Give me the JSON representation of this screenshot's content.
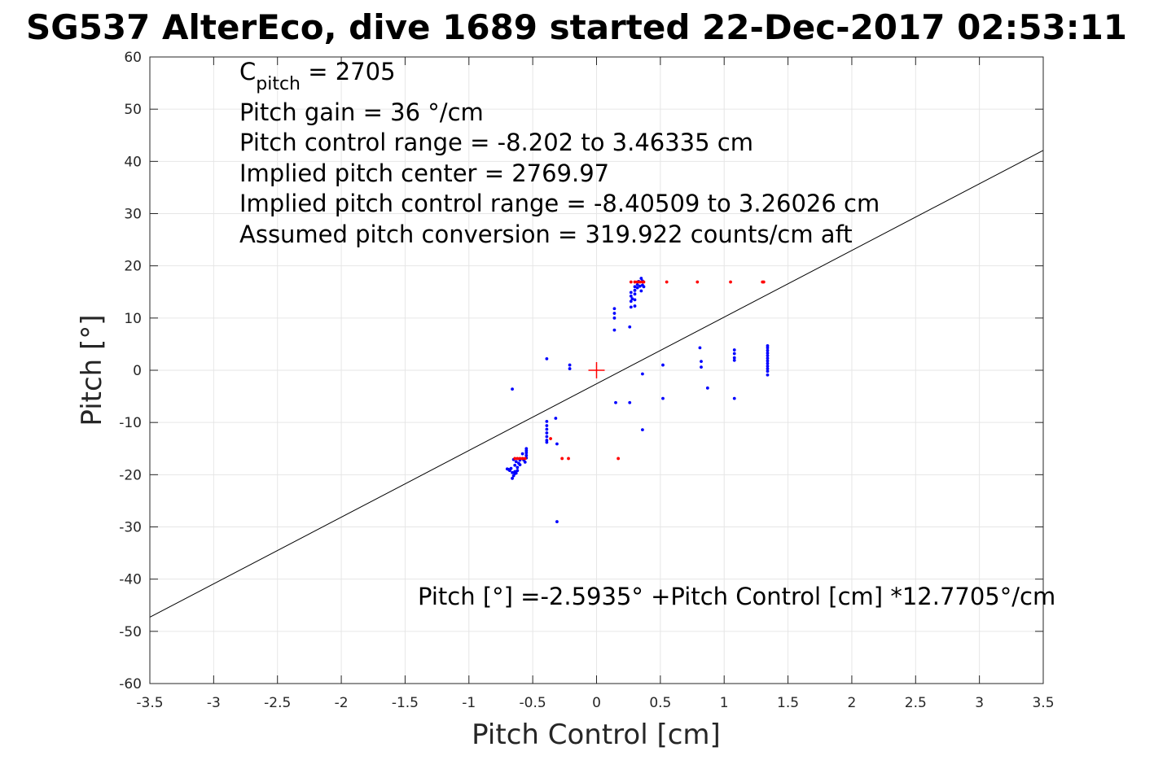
{
  "chart_data": {
    "type": "scatter",
    "title": "SG537 AlterEco, dive 1689 started 22-Dec-2017 02:53:11",
    "xlabel": "Pitch Control [cm]",
    "ylabel": "Pitch [°]",
    "xlim": [
      -3.5,
      3.5
    ],
    "ylim": [
      -60,
      60
    ],
    "grid": true,
    "x_ticks": [
      -3.5,
      -3,
      -2.5,
      -2,
      -1.5,
      -1,
      -0.5,
      0,
      0.5,
      1,
      1.5,
      2,
      2.5,
      3,
      3.5
    ],
    "y_ticks": [
      -60,
      -50,
      -40,
      -30,
      -20,
      -10,
      0,
      10,
      20,
      30,
      40,
      50,
      60
    ],
    "x_tick_labels": [
      "-3.5",
      "-3",
      "-2.5",
      "-2",
      "-1.5",
      "-1",
      "-0.5",
      "0",
      "0.5",
      "1",
      "1.5",
      "2",
      "2.5",
      "3",
      "3.5"
    ],
    "y_tick_labels": [
      "-60",
      "-50",
      "-40",
      "-30",
      "-20",
      "-10",
      "0",
      "10",
      "20",
      "30",
      "40",
      "50",
      "60"
    ],
    "annotations": {
      "c_pitch_symbol": "C",
      "c_pitch_subscript": "pitch",
      "c_pitch_value": " = 2705",
      "lines": [
        "Pitch gain = 36 °/cm",
        "Pitch control range = -8.202 to 3.46335 cm",
        "Implied pitch center = 2769.97",
        "Implied pitch control range = -8.40509 to 3.26026 cm",
        "Assumed pitch conversion = 319.922 counts/cm aft"
      ],
      "fit_equation": "Pitch [°] =-2.5935° +Pitch Control [cm] *12.7705°/cm"
    },
    "fit_line": {
      "intercept": -2.5935,
      "slope": 12.7705,
      "color": "#000000"
    },
    "center_marker": {
      "x": 0,
      "y": 0,
      "color": "#ff0000"
    },
    "series": [
      {
        "color": "#0000ff",
        "points": [
          [
            -0.67,
            -18.8
          ],
          [
            -0.68,
            -19.2
          ],
          [
            -0.66,
            -19.6
          ],
          [
            -0.65,
            -20.2
          ],
          [
            -0.64,
            -18.2
          ],
          [
            -0.63,
            -17.5
          ],
          [
            -0.62,
            -18.6
          ],
          [
            -0.66,
            -20.7
          ],
          [
            -0.64,
            -19.8
          ],
          [
            -0.61,
            -17.8
          ],
          [
            -0.69,
            -19.0
          ],
          [
            -0.7,
            -18.9
          ],
          [
            -0.62,
            -19.2
          ],
          [
            -0.6,
            -17.2
          ],
          [
            -0.6,
            -18.1
          ],
          [
            -0.65,
            -17.1
          ],
          [
            -0.64,
            -19.4
          ],
          [
            -0.63,
            -19.7
          ],
          [
            -0.66,
            -3.6
          ],
          [
            -0.55,
            -15.0
          ],
          [
            -0.55,
            -15.4
          ],
          [
            -0.55,
            -15.8
          ],
          [
            -0.55,
            -16.3
          ],
          [
            -0.55,
            -16.8
          ],
          [
            -0.57,
            -17.2
          ],
          [
            -0.58,
            -16.0
          ],
          [
            -0.56,
            -17.6
          ],
          [
            -0.39,
            -9.8
          ],
          [
            -0.39,
            -10.6
          ],
          [
            -0.39,
            -11.3
          ],
          [
            -0.39,
            -12.0
          ],
          [
            -0.39,
            -12.7
          ],
          [
            -0.39,
            -13.4
          ],
          [
            -0.39,
            -13.8
          ],
          [
            -0.39,
            2.2
          ],
          [
            -0.32,
            -9.2
          ],
          [
            -0.31,
            -14.1
          ],
          [
            -0.31,
            -29.0
          ],
          [
            -0.21,
            0.3
          ],
          [
            -0.21,
            1.0
          ],
          [
            0.14,
            11.8
          ],
          [
            0.14,
            10.9
          ],
          [
            0.14,
            10.0
          ],
          [
            0.14,
            7.7
          ],
          [
            0.15,
            -6.2
          ],
          [
            0.26,
            -6.2
          ],
          [
            0.26,
            8.3
          ],
          [
            0.27,
            12.1
          ],
          [
            0.27,
            13.2
          ],
          [
            0.27,
            14.2
          ],
          [
            0.27,
            14.9
          ],
          [
            0.28,
            13.7
          ],
          [
            0.3,
            15.3
          ],
          [
            0.3,
            16.0
          ],
          [
            0.3,
            14.6
          ],
          [
            0.3,
            12.3
          ],
          [
            0.3,
            13.5
          ],
          [
            0.32,
            16.4
          ],
          [
            0.32,
            15.8
          ],
          [
            0.33,
            17.0
          ],
          [
            0.34,
            16.1
          ],
          [
            0.35,
            15.2
          ],
          [
            0.35,
            17.6
          ],
          [
            0.36,
            17.1
          ],
          [
            0.36,
            16.3
          ],
          [
            0.37,
            16.0
          ],
          [
            0.36,
            -0.7
          ],
          [
            0.36,
            -11.4
          ],
          [
            0.52,
            1.0
          ],
          [
            0.52,
            -5.4
          ],
          [
            0.81,
            4.3
          ],
          [
            0.82,
            1.7
          ],
          [
            0.82,
            0.6
          ],
          [
            0.87,
            -3.4
          ],
          [
            1.08,
            3.9
          ],
          [
            1.08,
            3.2
          ],
          [
            1.08,
            2.4
          ],
          [
            1.08,
            1.9
          ],
          [
            1.08,
            -5.4
          ],
          [
            1.34,
            4.7
          ],
          [
            1.34,
            4.3
          ],
          [
            1.34,
            3.8
          ],
          [
            1.34,
            3.3
          ],
          [
            1.34,
            2.8
          ],
          [
            1.34,
            2.3
          ],
          [
            1.34,
            1.8
          ],
          [
            1.34,
            1.3
          ],
          [
            1.34,
            0.8
          ],
          [
            1.34,
            0.3
          ],
          [
            1.34,
            -0.2
          ],
          [
            1.34,
            -0.9
          ]
        ]
      },
      {
        "color": "#ff0000",
        "points": [
          [
            -0.64,
            -16.9
          ],
          [
            -0.62,
            -16.9
          ],
          [
            -0.6,
            -16.9
          ],
          [
            -0.58,
            -16.9
          ],
          [
            -0.56,
            -16.9
          ],
          [
            -0.36,
            -13.1
          ],
          [
            -0.27,
            -16.9
          ],
          [
            -0.22,
            -16.9
          ],
          [
            0.17,
            -16.9
          ],
          [
            0.27,
            16.9
          ],
          [
            0.3,
            16.9
          ],
          [
            0.32,
            16.9
          ],
          [
            0.34,
            16.9
          ],
          [
            0.36,
            16.9
          ],
          [
            0.37,
            16.9
          ],
          [
            0.55,
            16.9
          ],
          [
            0.79,
            16.9
          ],
          [
            1.05,
            16.9
          ],
          [
            1.3,
            16.9
          ],
          [
            1.31,
            16.9
          ]
        ]
      }
    ]
  }
}
